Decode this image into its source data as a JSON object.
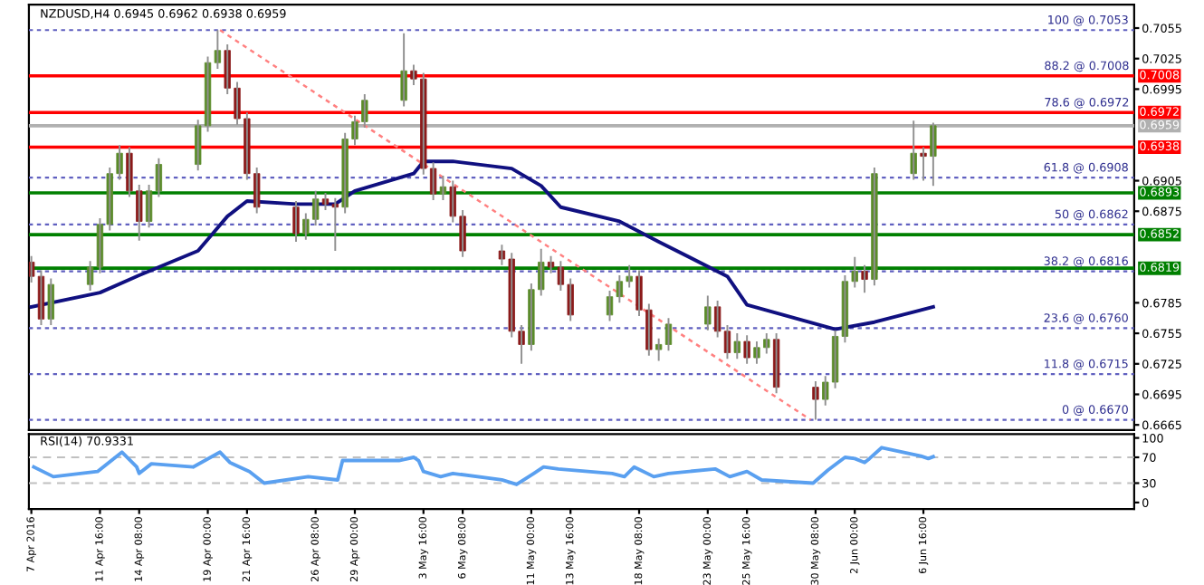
{
  "chart_data": [
    {
      "type": "candlestick",
      "title": "NZDUSD,H4 0.6945 0.6962 0.6938 0.6959",
      "tick_labels": "y",
      "x": [
        "2016-04-07T00:00",
        "2016-04-07T16:00",
        "2016-04-08T08:00",
        "2016-04-11T00:00",
        "2016-04-11T16:00",
        "2016-04-12T08:00",
        "2016-04-13T00:00",
        "2016-04-13T16:00",
        "2016-04-14T08:00",
        "2016-04-15T00:00",
        "2016-04-15T16:00",
        "2016-04-18T08:00",
        "2016-04-19T00:00",
        "2016-04-19T16:00",
        "2016-04-20T08:00",
        "2016-04-21T00:00",
        "2016-04-21T16:00",
        "2016-04-22T08:00",
        "2016-04-25T00:00",
        "2016-04-25T16:00",
        "2016-04-26T08:00",
        "2016-04-27T00:00",
        "2016-04-27T16:00",
        "2016-04-28T08:00",
        "2016-04-29T00:00",
        "2016-04-29T16:00",
        "2016-05-02T08:00",
        "2016-05-03T00:00",
        "2016-05-03T16:00",
        "2016-05-04T08:00",
        "2016-05-05T00:00",
        "2016-05-05T16:00",
        "2016-05-06T08:00",
        "2016-05-09T00:00",
        "2016-05-09T16:00",
        "2016-05-10T08:00",
        "2016-05-11T00:00",
        "2016-05-11T16:00",
        "2016-05-12T08:00",
        "2016-05-13T00:00",
        "2016-05-13T16:00",
        "2016-05-16T08:00",
        "2016-05-17T00:00",
        "2016-05-17T16:00",
        "2016-05-18T08:00",
        "2016-05-19T00:00",
        "2016-05-19T16:00",
        "2016-05-20T08:00",
        "2016-05-23T00:00",
        "2016-05-23T16:00",
        "2016-05-24T08:00",
        "2016-05-25T00:00",
        "2016-05-25T16:00",
        "2016-05-26T08:00",
        "2016-05-27T00:00",
        "2016-05-27T16:00",
        "2016-05-30T08:00",
        "2016-05-31T00:00",
        "2016-05-31T16:00",
        "2016-06-01T08:00",
        "2016-06-02T00:00",
        "2016-06-02T16:00",
        "2016-06-03T08:00",
        "2016-06-06T00:00",
        "2016-06-06T16:00",
        "2016-06-07T08:00"
      ],
      "ohlc": [
        [
          0.6825,
          0.6831,
          0.6805,
          0.6811
        ],
        [
          0.6811,
          0.6817,
          0.6763,
          0.6769
        ],
        [
          0.6769,
          0.6809,
          0.6763,
          0.6803
        ],
        [
          0.6803,
          0.6826,
          0.6797,
          0.682
        ],
        [
          0.682,
          0.6868,
          0.6814,
          0.6862
        ],
        [
          0.6862,
          0.6918,
          0.6856,
          0.6912
        ],
        [
          0.6912,
          0.694,
          0.6906,
          0.6932
        ],
        [
          0.6932,
          0.6938,
          0.6889,
          0.6895
        ],
        [
          0.6895,
          0.6901,
          0.6846,
          0.6865
        ],
        [
          0.6865,
          0.6901,
          0.6859,
          0.6895
        ],
        [
          0.6895,
          0.6927,
          0.6889,
          0.6921
        ],
        [
          0.6921,
          0.6965,
          0.6915,
          0.6959
        ],
        [
          0.6959,
          0.7027,
          0.6953,
          0.7021
        ],
        [
          0.7021,
          0.7053,
          0.7015,
          0.7033
        ],
        [
          0.7033,
          0.7039,
          0.699,
          0.6996
        ],
        [
          0.6996,
          0.7002,
          0.696,
          0.6966
        ],
        [
          0.6966,
          0.6972,
          0.6906,
          0.6912
        ],
        [
          0.6912,
          0.6918,
          0.6873,
          0.6879
        ],
        [
          0.6879,
          0.6885,
          0.6845,
          0.6853
        ],
        [
          0.6853,
          0.6873,
          0.6847,
          0.6867
        ],
        [
          0.6867,
          0.6895,
          0.6861,
          0.6887
        ],
        [
          0.6887,
          0.6893,
          0.6876,
          0.6882
        ],
        [
          0.6882,
          0.6888,
          0.6836,
          0.6879
        ],
        [
          0.6879,
          0.6952,
          0.6873,
          0.6946
        ],
        [
          0.6946,
          0.6969,
          0.694,
          0.6963
        ],
        [
          0.6963,
          0.699,
          0.6957,
          0.6984
        ],
        [
          0.6984,
          0.705,
          0.6978,
          0.7013
        ],
        [
          0.7013,
          0.7019,
          0.6999,
          0.7005
        ],
        [
          0.7005,
          0.7011,
          0.6911,
          0.6917
        ],
        [
          0.6917,
          0.6923,
          0.6886,
          0.6892
        ],
        [
          0.6892,
          0.691,
          0.6886,
          0.6899
        ],
        [
          0.6899,
          0.6905,
          0.6864,
          0.687
        ],
        [
          0.687,
          0.6876,
          0.683,
          0.6836
        ],
        [
          0.6836,
          0.6842,
          0.6822,
          0.6828
        ],
        [
          0.6828,
          0.6834,
          0.6751,
          0.6757
        ],
        [
          0.6757,
          0.6763,
          0.6725,
          0.6744
        ],
        [
          0.6744,
          0.6804,
          0.6738,
          0.6798
        ],
        [
          0.6798,
          0.6838,
          0.6792,
          0.6825
        ],
        [
          0.6825,
          0.6831,
          0.6814,
          0.682
        ],
        [
          0.682,
          0.6826,
          0.6797,
          0.6803
        ],
        [
          0.6803,
          0.6809,
          0.6767,
          0.6773
        ],
        [
          0.6773,
          0.6797,
          0.6767,
          0.6791
        ],
        [
          0.6791,
          0.6812,
          0.6785,
          0.6806
        ],
        [
          0.6806,
          0.6822,
          0.68,
          0.6811
        ],
        [
          0.6811,
          0.6817,
          0.6772,
          0.6778
        ],
        [
          0.6778,
          0.6784,
          0.6733,
          0.6739
        ],
        [
          0.6739,
          0.675,
          0.6728,
          0.6744
        ],
        [
          0.6744,
          0.677,
          0.6738,
          0.6764
        ],
        [
          0.6764,
          0.6792,
          0.6758,
          0.6781
        ],
        [
          0.6781,
          0.6787,
          0.6751,
          0.6757
        ],
        [
          0.6757,
          0.6763,
          0.673,
          0.6736
        ],
        [
          0.6736,
          0.6755,
          0.673,
          0.6747
        ],
        [
          0.6747,
          0.6753,
          0.6725,
          0.6731
        ],
        [
          0.6731,
          0.6747,
          0.6725,
          0.6741
        ],
        [
          0.6741,
          0.6755,
          0.6735,
          0.6749
        ],
        [
          0.6749,
          0.6755,
          0.6696,
          0.6702
        ],
        [
          0.6702,
          0.6708,
          0.667,
          0.669
        ],
        [
          0.669,
          0.6713,
          0.6684,
          0.6707
        ],
        [
          0.6707,
          0.6758,
          0.6701,
          0.6752
        ],
        [
          0.6752,
          0.6812,
          0.6746,
          0.6806
        ],
        [
          0.6806,
          0.683,
          0.68,
          0.6816
        ],
        [
          0.6816,
          0.6822,
          0.6795,
          0.6808
        ],
        [
          0.6808,
          0.6918,
          0.6802,
          0.6912
        ],
        [
          0.6912,
          0.6964,
          0.6906,
          0.6932
        ],
        [
          0.6932,
          0.6938,
          0.6905,
          0.6929
        ],
        [
          0.6929,
          0.6962,
          0.69,
          0.6959
        ]
      ],
      "colors": [
        "#8b1a1a",
        "#8b1a1a",
        "#5b8c2a",
        "#5b8c2a",
        "#5b8c2a",
        "#5b8c2a",
        "#5b8c2a",
        "#8b1a1a",
        "#8b1a1a",
        "#5b8c2a",
        "#5b8c2a",
        "#5b8c2a",
        "#5b8c2a",
        "#5b8c2a",
        "#8b1a1a",
        "#8b1a1a",
        "#8b1a1a",
        "#8b1a1a",
        "#8b1a1a",
        "#5b8c2a",
        "#5b8c2a",
        "#8b1a1a",
        "#8b1a1a",
        "#5b8c2a",
        "#5b8c2a",
        "#5b8c2a",
        "#5b8c2a",
        "#8b1a1a",
        "#8b1a1a",
        "#8b1a1a",
        "#5b8c2a",
        "#8b1a1a",
        "#8b1a1a",
        "#8b1a1a",
        "#8b1a1a",
        "#8b1a1a",
        "#5b8c2a",
        "#5b8c2a",
        "#8b1a1a",
        "#8b1a1a",
        "#8b1a1a",
        "#5b8c2a",
        "#5b8c2a",
        "#5b8c2a",
        "#8b1a1a",
        "#8b1a1a",
        "#5b8c2a",
        "#5b8c2a",
        "#5b8c2a",
        "#8b1a1a",
        "#8b1a1a",
        "#5b8c2a",
        "#8b1a1a",
        "#5b8c2a",
        "#5b8c2a",
        "#8b1a1a",
        "#8b1a1a",
        "#5b8c2a",
        "#5b8c2a",
        "#5b8c2a",
        "#5b8c2a",
        "#8b1a1a",
        "#5b8c2a",
        "#5b8c2a",
        "#8b1a1a",
        "#5b8c2a"
      ],
      "series": [
        {
          "type": "line",
          "color": "#101080",
          "line_style": "solid",
          "x": [
            "2016-04-07T00:00",
            "2016-04-11T16:00",
            "2016-04-14T08:00",
            "2016-04-18T08:00",
            "2016-04-20T08:00",
            "2016-04-21T16:00",
            "2016-04-25T00:00",
            "2016-04-26T08:00",
            "2016-04-27T16:00",
            "2016-04-29T00:00",
            "2016-05-03T00:00",
            "2016-05-03T16:00",
            "2016-05-05T16:00",
            "2016-05-09T16:00",
            "2016-05-11T16:00",
            "2016-05-13T00:00",
            "2016-05-17T00:00",
            "2016-05-19T16:00",
            "2016-05-24T08:00",
            "2016-05-25T16:00",
            "2016-05-31T16:00",
            "2016-06-03T08:00",
            "2016-06-07T08:00"
          ],
          "values": [
            0.6781,
            0.6795,
            0.6812,
            0.6836,
            0.687,
            0.6885,
            0.6882,
            0.6882,
            0.6882,
            0.6895,
            0.6912,
            0.6924,
            0.6924,
            0.6917,
            0.69,
            0.6879,
            0.6865,
            0.6845,
            0.6811,
            0.6783,
            0.6759,
            0.6766,
            0.6781
          ]
        },
        {
          "type": "line",
          "color": "#ff8080",
          "line_style": "dotted",
          "x": [
            "2016-04-19T20:00",
            "2016-05-30T00:00"
          ],
          "values": [
            0.7053,
            0.667
          ]
        }
      ],
      "ref_lines": [
        {
          "axis": "y",
          "value": 0.7053,
          "label": "100 @ 0.7053",
          "color": "#6060c0",
          "line_style": "dotted"
        },
        {
          "axis": "y",
          "value": 0.6908,
          "label": "61.8 @ 0.6908",
          "color": "#6060c0",
          "line_style": "dotted"
        },
        {
          "axis": "y",
          "value": 0.6862,
          "label": "50 @ 0.6862",
          "color": "#6060c0",
          "line_style": "dotted"
        },
        {
          "axis": "y",
          "value": 0.6816,
          "label": "38.2 @ 0.6816",
          "color": "#6060c0",
          "line_style": "dotted"
        },
        {
          "axis": "y",
          "value": 0.676,
          "label": "23.6 @ 0.6760",
          "color": "#6060c0",
          "line_style": "dotted"
        },
        {
          "axis": "y",
          "value": 0.6715,
          "label": "11.8 @ 0.6715",
          "color": "#6060c0",
          "line_style": "dotted"
        },
        {
          "axis": "y",
          "value": 0.667,
          "label": "0 @ 0.6670",
          "color": "#6060c0",
          "line_style": "dotted"
        },
        {
          "axis": "y",
          "value": 0.7008,
          "label": "0.7008",
          "color": "#ff0000",
          "line_style": "solid"
        },
        {
          "axis": "y",
          "value": 0.6972,
          "label": "0.6972",
          "color": "#ff0000",
          "line_style": "solid"
        },
        {
          "axis": "y",
          "value": 0.6959,
          "label": "0.6959",
          "color": "#b0b0b0",
          "line_style": "solid"
        },
        {
          "axis": "y",
          "value": 0.6938,
          "label": "0.6938",
          "color": "#ff0000",
          "line_style": "solid"
        },
        {
          "axis": "y",
          "value": 0.6893,
          "label": "0.6893",
          "color": "#008000",
          "line_style": "solid"
        },
        {
          "axis": "y",
          "value": 0.6852,
          "label": "0.6852",
          "color": "#008000",
          "line_style": "solid"
        },
        {
          "axis": "y",
          "value": 0.6819,
          "label": "0.6819",
          "color": "#008000",
          "line_style": "solid"
        }
      ],
      "xlim": [
        "2016-04-06T20:00",
        "2016-06-21T00:00"
      ],
      "ylim": [
        0.666,
        0.7078
      ],
      "annotations": [
        {
          "text": "88.2 @ 0.7008",
          "x": "2016-06-20T16:00",
          "y": 0.7008
        },
        {
          "text": "78.6 @ 0.6972",
          "x": "2016-06-20T16:00",
          "y": 0.6972
        }
      ],
      "yticks": [
        0.6665,
        0.6695,
        0.6725,
        0.6755,
        0.6785,
        0.6875,
        0.6905,
        0.6995,
        0.7025,
        0.7055
      ]
    },
    {
      "type": "line",
      "annotations": [
        "RSI(14) 70.9331"
      ],
      "series": [
        {
          "color": "#5aa0f0",
          "x": [
            "2016-04-07T04:00",
            "2016-04-08T12:00",
            "2016-04-11T12:00",
            "2016-04-13T04:00",
            "2016-04-14T04:00",
            "2016-04-14T08:00",
            "2016-04-15T04:00",
            "2016-04-18T00:00",
            "2016-04-19T20:00",
            "2016-04-20T12:00",
            "2016-04-21T20:00",
            "2016-04-22T20:00",
            "2016-04-25T20:00",
            "2016-04-27T20:00",
            "2016-04-28T04:00",
            "2016-05-02T00:00",
            "2016-05-03T00:00",
            "2016-05-03T08:00",
            "2016-05-03T16:00",
            "2016-05-04T20:00",
            "2016-05-05T16:00",
            "2016-05-09T00:00",
            "2016-05-10T00:00",
            "2016-05-11T04:00",
            "2016-05-11T20:00",
            "2016-05-12T20:00",
            "2016-05-16T12:00",
            "2016-05-17T08:00",
            "2016-05-18T00:00",
            "2016-05-19T08:00",
            "2016-05-20T08:00",
            "2016-05-23T12:00",
            "2016-05-24T12:00",
            "2016-05-25T16:00",
            "2016-05-26T16:00",
            "2016-05-30T04:00",
            "2016-05-31T04:00",
            "2016-06-01T08:00",
            "2016-06-02T00:00",
            "2016-06-02T16:00",
            "2016-06-03T00:00",
            "2016-06-03T20:00",
            "2016-06-06T12:00",
            "2016-06-07T00:00",
            "2016-06-07T08:00"
          ],
          "values": [
            55,
            40,
            48,
            78,
            55,
            45,
            60,
            55,
            78,
            62,
            48,
            30,
            40,
            35,
            65,
            65,
            70,
            65,
            48,
            40,
            45,
            35,
            28,
            45,
            55,
            52,
            45,
            40,
            55,
            40,
            45,
            52,
            40,
            48,
            35,
            30,
            50,
            70,
            68,
            62,
            68,
            85,
            72,
            68,
            71
          ]
        }
      ],
      "ref_lines": [
        {
          "axis": "y",
          "value": 70,
          "color": "#c0c0c0",
          "line_style": "dashed"
        },
        {
          "axis": "y",
          "value": 30,
          "color": "#c0c0c0",
          "line_style": "dashed"
        }
      ],
      "xlim": [
        "2016-04-06T20:00",
        "2016-06-21T00:00"
      ],
      "ylim": [
        -10,
        106
      ],
      "yticks": [
        0,
        30,
        70,
        100
      ],
      "xticks": [
        {
          "value": "2016-04-07T00:00",
          "label": "7 Apr 2016"
        },
        {
          "value": "2016-04-11T16:00",
          "label": "11 Apr 16:00"
        },
        {
          "value": "2016-04-14T08:00",
          "label": "14 Apr 08:00"
        },
        {
          "value": "2016-04-19T00:00",
          "label": "19 Apr 00:00"
        },
        {
          "value": "2016-04-21T16:00",
          "label": "21 Apr 16:00"
        },
        {
          "value": "2016-04-26T08:00",
          "label": "26 Apr 08:00"
        },
        {
          "value": "2016-04-29T00:00",
          "label": "29 Apr 00:00"
        },
        {
          "value": "2016-05-03T16:00",
          "label": "3 May 16:00"
        },
        {
          "value": "2016-05-06T08:00",
          "label": "6 May 08:00"
        },
        {
          "value": "2016-05-11T00:00",
          "label": "11 May 00:00"
        },
        {
          "value": "2016-05-13T16:00",
          "label": "13 May 16:00"
        },
        {
          "value": "2016-05-18T08:00",
          "label": "18 May 08:00"
        },
        {
          "value": "2016-05-23T00:00",
          "label": "23 May 00:00"
        },
        {
          "value": "2016-05-25T16:00",
          "label": "25 May 16:00"
        },
        {
          "value": "2016-05-30T08:00",
          "label": "30 May 08:00"
        },
        {
          "value": "2016-06-02T00:00",
          "label": "2 Jun 00:00"
        },
        {
          "value": "2016-06-06T16:00",
          "label": "6 Jun 16:00"
        }
      ]
    }
  ]
}
